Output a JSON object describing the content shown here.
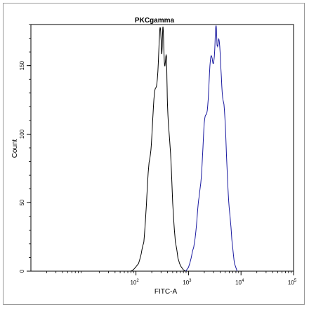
{
  "chart_data": {
    "type": "line",
    "title": "PKCgamma",
    "xlabel": "FITC-A",
    "ylabel": "Count",
    "x_scale": "log",
    "xlim": [
      1,
      100000
    ],
    "ylim": [
      0,
      180
    ],
    "x_ticks": [
      {
        "value": 100,
        "base": "10",
        "exp": "2"
      },
      {
        "value": 1000,
        "base": "10",
        "exp": "3"
      },
      {
        "value": 10000,
        "base": "10",
        "exp": "4"
      },
      {
        "value": 100000,
        "base": "10",
        "exp": "5"
      }
    ],
    "y_ticks": [
      {
        "value": 0,
        "label": "0"
      },
      {
        "value": 50,
        "label": "50"
      },
      {
        "value": 100,
        "label": "100"
      },
      {
        "value": 150,
        "label": "150"
      }
    ],
    "grid": false,
    "series": [
      {
        "color": "#000000",
        "x": [
          79,
          89,
          100,
          112,
          126,
          141,
          158,
          178,
          200,
          224,
          251,
          282,
          302,
          316,
          331,
          355,
          380,
          398,
          447,
          501,
          562,
          631,
          708,
          794,
          891
        ],
        "y": [
          0,
          1,
          3,
          6,
          12,
          22,
          48,
          78,
          102,
          122,
          146,
          166,
          172,
          165,
          170,
          158,
          148,
          128,
          88,
          50,
          22,
          9,
          4,
          1,
          0
        ]
      },
      {
        "color": "#1a1aa0",
        "x": [
          891,
          1000,
          1122,
          1259,
          1413,
          1585,
          1778,
          1995,
          2239,
          2512,
          2818,
          3162,
          3388,
          3548,
          3802,
          4217,
          4732,
          5309,
          5957,
          6683,
          7499,
          8414
        ],
        "y": [
          0,
          3,
          9,
          18,
          33,
          52,
          76,
          102,
          122,
          140,
          156,
          166,
          170,
          175,
          160,
          148,
          120,
          82,
          48,
          22,
          6,
          0
        ]
      }
    ]
  }
}
